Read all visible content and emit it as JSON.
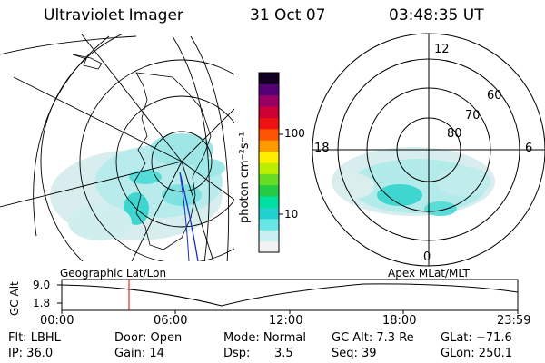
{
  "header": {
    "instrument": "Ultraviolet Imager",
    "date": "31 Oct 07",
    "time": "03:48:35 UT"
  },
  "colorbar": {
    "unit_label": "photon cm⁻²s⁻¹",
    "tick_labels": [
      "100",
      "10"
    ],
    "colors": [
      "#f2f2f2",
      "#c9f0f0",
      "#66e6e6",
      "#22d0d0",
      "#00e0a0",
      "#22cc44",
      "#66dd22",
      "#bbee00",
      "#ffee00",
      "#ff9900",
      "#ff5500",
      "#ee1111",
      "#cc0033",
      "#990066",
      "#550077",
      "#110022"
    ]
  },
  "polar_plot": {
    "lat_labels": [
      "60",
      "70",
      "80"
    ],
    "mlt_labels": [
      "12",
      "18",
      "6",
      "0"
    ]
  },
  "timeline": {
    "left_title": "Geographic Lat/Lon",
    "right_title": "Apex  MLat/MLT",
    "y_axis_label": "GC Alt",
    "y_ticks": [
      "9.0",
      "1.8"
    ],
    "x_ticks": [
      "00:00",
      "06:00",
      "12:00",
      "18:00",
      "23:59"
    ],
    "marker_color": "#dd0000"
  },
  "info": {
    "flt": "Flt: LBHL",
    "ip": "IP: 36.0",
    "door": "Door: Open",
    "gain": "Gain: 14",
    "mode": "Mode: Normal",
    "dsp_label": "Dsp:",
    "dsp_value": "3.5",
    "gc_alt": "GC Alt: 7.3 Re",
    "seq": "Seq: 39",
    "glat": "GLat: −71.6",
    "glon": "GLon: 250.1"
  }
}
